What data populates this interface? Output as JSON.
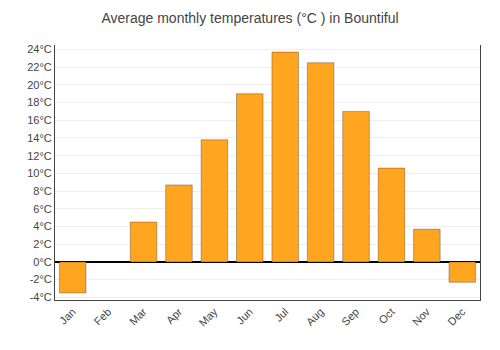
{
  "chart_data": {
    "type": "bar",
    "title": "Average monthly temperatures (°C ) in Bountiful",
    "categories": [
      "Jan",
      "Feb",
      "Mar",
      "Apr",
      "May",
      "Jun",
      "Jul",
      "Aug",
      "Sep",
      "Oct",
      "Nov",
      "Dec"
    ],
    "values": [
      -3.5,
      0.0,
      4.5,
      8.7,
      13.8,
      19.0,
      23.7,
      22.5,
      17.0,
      10.6,
      3.7,
      -2.3
    ],
    "color": "#FFA520",
    "ylim": [
      -4.3,
      24.5
    ],
    "yticks": [
      {
        "value": -4,
        "label": "-4°C"
      },
      {
        "value": -2,
        "label": "-2°C"
      },
      {
        "value": 0,
        "label": "0°C"
      },
      {
        "value": 2,
        "label": "2°C"
      },
      {
        "value": 4,
        "label": "4°C"
      },
      {
        "value": 6,
        "label": "6°C"
      },
      {
        "value": 8,
        "label": "8°C"
      },
      {
        "value": 10,
        "label": "10°C"
      },
      {
        "value": 12,
        "label": "12°C"
      },
      {
        "value": 14,
        "label": "14°C"
      },
      {
        "value": 16,
        "label": "16°C"
      },
      {
        "value": 18,
        "label": "18°C"
      },
      {
        "value": 20,
        "label": "20°C"
      },
      {
        "value": 22,
        "label": "22°C"
      },
      {
        "value": 24,
        "label": "24°C"
      }
    ],
    "grid": true
  }
}
